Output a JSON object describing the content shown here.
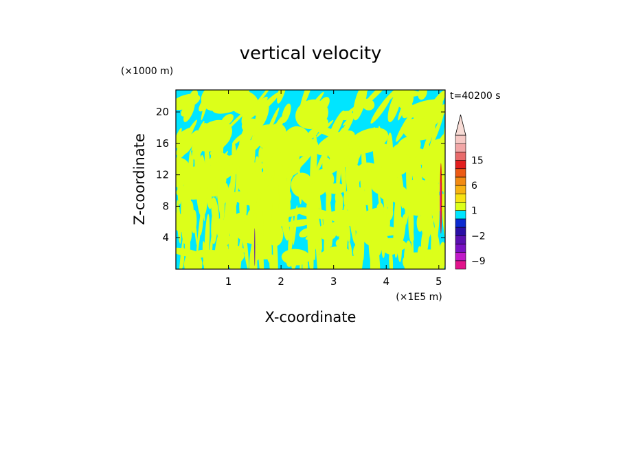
{
  "chart_data": {
    "type": "heatmap",
    "title": "vertical velocity",
    "xlabel": "X-coordinate",
    "ylabel": "Z-coordinate",
    "x_unit": "(×1E5 m)",
    "y_unit": "(×1000 m)",
    "time_label": "t=40200 s",
    "xlim": [
      0,
      5.12
    ],
    "ylim": [
      0,
      22.8
    ],
    "x_ticks": [
      "1",
      "2",
      "3",
      "4",
      "5"
    ],
    "y_ticks": [
      "4",
      "8",
      "12",
      "16",
      "20"
    ],
    "x_tick_values": [
      1,
      2,
      3,
      4,
      5
    ],
    "y_tick_values": [
      4,
      8,
      12,
      16,
      20
    ],
    "background_color": "#00e5ff",
    "positive_color": "#dcff1a",
    "colorbar": {
      "tick_labels": [
        "15",
        "6",
        "1",
        "−2",
        "−9"
      ],
      "tick_values": [
        15,
        6,
        1,
        -2,
        -9
      ],
      "levels": [
        {
          "color": "#e2148c"
        },
        {
          "color": "#c11ac8"
        },
        {
          "color": "#7a11c4"
        },
        {
          "color": "#5a10b0"
        },
        {
          "color": "#2a0fa5"
        },
        {
          "color": "#0c2ad0"
        },
        {
          "color": "#00e5ff"
        },
        {
          "color": "#dcff1a"
        },
        {
          "color": "#f7e212"
        },
        {
          "color": "#f7b212"
        },
        {
          "color": "#f28a12"
        },
        {
          "color": "#ec5a14"
        },
        {
          "color": "#e21e1e"
        },
        {
          "color": "#e86a6a"
        },
        {
          "color": "#f2a6a6"
        },
        {
          "color": "#f6c8c4"
        }
      ],
      "extend_color": "#f8dcd6"
    }
  }
}
